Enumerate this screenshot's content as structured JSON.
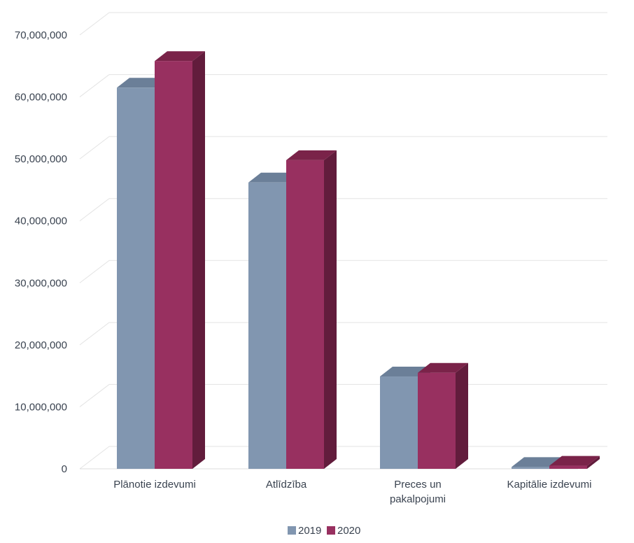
{
  "chart_data": {
    "type": "bar",
    "style": "3d-clustered-column",
    "categories": [
      [
        "Plānotie izdevumi"
      ],
      [
        "Atlīdzība"
      ],
      [
        "Preces un",
        "pakalpojumi"
      ],
      [
        "Kapitālie izdevumi"
      ]
    ],
    "series": [
      {
        "name": "2019",
        "values": [
          61500000,
          46200000,
          14900000,
          300000
        ],
        "color": "#8196b0",
        "top_color": "#6b7f98",
        "side_color": "#5f7189"
      },
      {
        "name": "2020",
        "values": [
          65800000,
          49800000,
          15500000,
          500000
        ],
        "color": "#983060",
        "top_color": "#7a2349",
        "side_color": "#621c3c"
      }
    ],
    "y_ticks": [
      "0",
      "10,000,000",
      "20,000,000",
      "30,000,000",
      "40,000,000",
      "50,000,000",
      "60,000,000",
      "70,000,000"
    ],
    "ylim": [
      0,
      70000000
    ],
    "grid": true,
    "legend": "bottom-center",
    "title": "",
    "xlabel": "",
    "ylabel": ""
  }
}
